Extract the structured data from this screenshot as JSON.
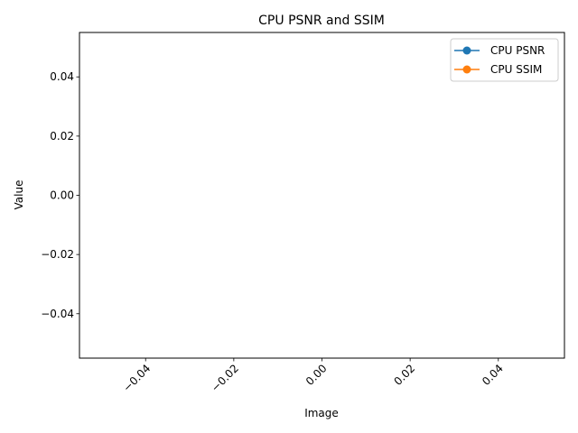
{
  "chart_data": {
    "type": "line",
    "title": "CPU PSNR and SSIM",
    "xlabel": "Image",
    "ylabel": "Value",
    "xlim": [
      -0.055,
      0.055
    ],
    "ylim": [
      -0.055,
      0.055
    ],
    "xticks": [
      -0.04,
      -0.02,
      0.0,
      0.02,
      0.04
    ],
    "xtick_labels": [
      "−0.04",
      "−0.02",
      "0.00",
      "0.02",
      "0.04"
    ],
    "xtick_rotation": 45,
    "yticks": [
      0.04,
      0.02,
      0.0,
      -0.02,
      -0.04
    ],
    "ytick_labels": [
      "0.04",
      "0.02",
      "0.00",
      "−0.02",
      "−0.04"
    ],
    "grid": false,
    "legend_position": "top-right",
    "series": [
      {
        "name": "CPU PSNR",
        "color": "#1f77b4",
        "marker": "circle",
        "x": [],
        "y": []
      },
      {
        "name": "CPU SSIM",
        "color": "#ff7f0e",
        "marker": "circle",
        "x": [],
        "y": []
      }
    ]
  }
}
